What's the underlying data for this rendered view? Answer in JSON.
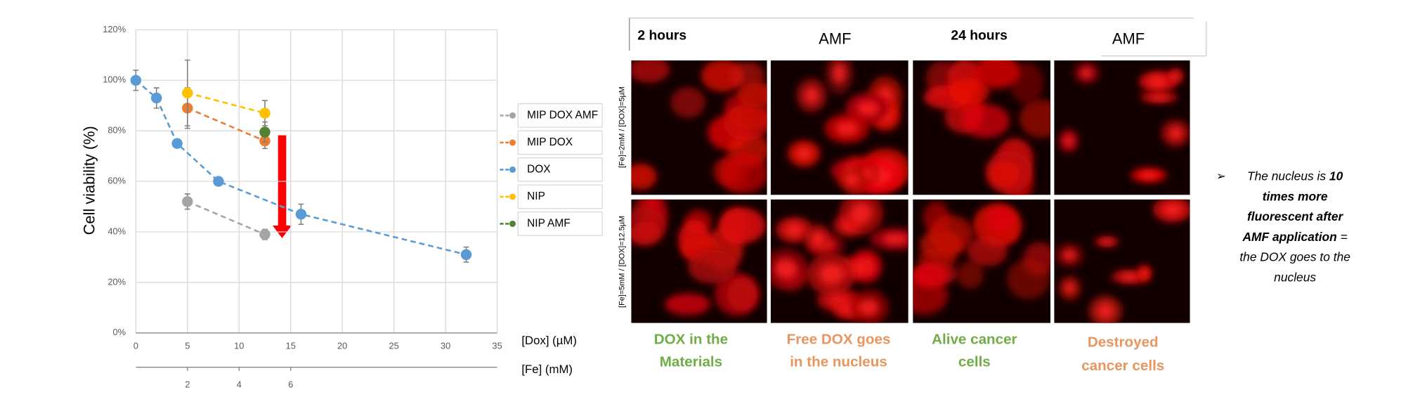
{
  "chart_data": {
    "type": "scatter",
    "ylabel": "Cell viability (%)",
    "xlabel": "[Dox] (µM)",
    "x2label": "[Fe] (mM)",
    "xlim": [
      0,
      35
    ],
    "xticks": [
      0,
      5,
      10,
      15,
      20,
      25,
      30,
      35
    ],
    "x2lim": [
      0,
      14
    ],
    "x2ticks": [
      2,
      4,
      6
    ],
    "ylim": [
      0,
      120
    ],
    "yticks": [
      {
        "value": 0,
        "label": "0%"
      },
      {
        "value": 20,
        "label": "20%"
      },
      {
        "value": 40,
        "label": "40%"
      },
      {
        "value": 60,
        "label": "60%"
      },
      {
        "value": 80,
        "label": "80%"
      },
      {
        "value": 100,
        "label": "100%"
      },
      {
        "value": 120,
        "label": "120%"
      }
    ],
    "grid": true,
    "legend": "right",
    "series": [
      {
        "name": "MIP DOX AMF",
        "color": "#a5a5a5",
        "x": [
          5,
          12.5
        ],
        "values": [
          52,
          39
        ],
        "errors": [
          3,
          2
        ]
      },
      {
        "name": "MIP DOX",
        "color": "#ed7d31",
        "x": [
          5,
          12.5
        ],
        "values": [
          89,
          76
        ],
        "errors": [
          8,
          3
        ]
      },
      {
        "name": "DOX",
        "color": "#5b9bd5",
        "x": [
          0,
          2,
          4,
          8,
          16,
          32
        ],
        "values": [
          100,
          93,
          75,
          60,
          47,
          31
        ],
        "errors": [
          4,
          4,
          0,
          0,
          4,
          3
        ]
      },
      {
        "name": "NIP",
        "color": "#ffc000",
        "x": [
          5,
          12.5
        ],
        "values": [
          95,
          87
        ],
        "errors": [
          13,
          5
        ]
      },
      {
        "name": "NIP AMF",
        "color": "#548235",
        "x": [
          12.5
        ],
        "values": [
          79.5
        ],
        "errors": [
          4
        ]
      }
    ]
  },
  "figure": {
    "columns": [
      "2 hours",
      "AMF",
      "24 hours",
      "AMF"
    ],
    "rows": [
      "[Fe]=2mM / [DOX]=5µM",
      "[Fe]=5mM / [DOX]=12.5µM"
    ],
    "captions": [
      {
        "lines": [
          "DOX in the",
          "Materials"
        ],
        "color": "#70ad47"
      },
      {
        "lines": [
          "Free DOX goes",
          "in the nucleus"
        ],
        "color": "#e8955e"
      },
      {
        "lines": [
          "Alive cancer",
          "cells"
        ],
        "color": "#70ad47"
      },
      {
        "lines": [
          "Destroyed",
          "cancer cells"
        ],
        "color": "#e8955e"
      }
    ],
    "note": [
      [
        {
          "text": "The nucleus is ",
          "bold": false
        },
        {
          "text": "10",
          "bold": true
        }
      ],
      [
        {
          "text": "times more",
          "bold": true
        }
      ],
      [
        {
          "text": "fluorescent after",
          "bold": true
        }
      ],
      [
        {
          "text": "AMF application",
          "bold": true
        },
        {
          "text": " =",
          "bold": false
        }
      ],
      [
        {
          "text": "the DOX goes to the",
          "bold": false
        }
      ],
      [
        {
          "text": "nucleus",
          "bold": false
        }
      ]
    ]
  }
}
